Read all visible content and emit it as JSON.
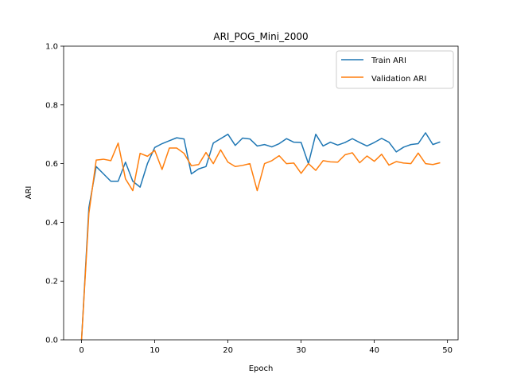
{
  "chart_data": {
    "type": "line",
    "title": "ARI_POG_Mini_2000",
    "xlabel": "Epoch",
    "ylabel": "ARI",
    "xlim": [
      -2.45,
      51.45
    ],
    "ylim": [
      0.0,
      1.0
    ],
    "xticks": [
      0,
      10,
      20,
      30,
      40,
      50
    ],
    "yticks": [
      0.0,
      0.2,
      0.4,
      0.6,
      0.8,
      1.0
    ],
    "xtick_labels": [
      "0",
      "10",
      "20",
      "30",
      "40",
      "50"
    ],
    "ytick_labels": [
      "0.0",
      "0.2",
      "0.4",
      "0.6",
      "0.8",
      "1.0"
    ],
    "grid": false,
    "legend_position": "top-right",
    "x": [
      0,
      1,
      2,
      3,
      4,
      5,
      6,
      7,
      8,
      9,
      10,
      11,
      12,
      13,
      14,
      15,
      16,
      17,
      18,
      19,
      20,
      21,
      22,
      23,
      24,
      25,
      26,
      27,
      28,
      29,
      30,
      31,
      32,
      33,
      34,
      35,
      36,
      37,
      38,
      39,
      40,
      41,
      42,
      43,
      44,
      45,
      46,
      47,
      48,
      49
    ],
    "series": [
      {
        "name": "Train ARI",
        "color": "#1f77b4",
        "values": [
          0.0,
          0.45,
          0.59,
          0.565,
          0.54,
          0.54,
          0.605,
          0.54,
          0.52,
          0.6,
          0.655,
          0.668,
          0.678,
          0.688,
          0.684,
          0.565,
          0.582,
          0.59,
          0.67,
          0.685,
          0.7,
          0.662,
          0.687,
          0.684,
          0.66,
          0.665,
          0.657,
          0.668,
          0.685,
          0.673,
          0.672,
          0.6,
          0.7,
          0.66,
          0.673,
          0.663,
          0.672,
          0.685,
          0.672,
          0.66,
          0.672,
          0.686,
          0.673,
          0.64,
          0.656,
          0.665,
          0.668,
          0.705,
          0.665,
          0.674
        ]
      },
      {
        "name": "Validation ARI",
        "color": "#ff7f0e",
        "values": [
          0.0,
          0.43,
          0.612,
          0.615,
          0.61,
          0.67,
          0.548,
          0.508,
          0.635,
          0.625,
          0.645,
          0.58,
          0.653,
          0.653,
          0.635,
          0.593,
          0.597,
          0.638,
          0.6,
          0.647,
          0.605,
          0.59,
          0.594,
          0.6,
          0.508,
          0.6,
          0.61,
          0.627,
          0.6,
          0.602,
          0.567,
          0.6,
          0.577,
          0.61,
          0.606,
          0.605,
          0.63,
          0.637,
          0.603,
          0.626,
          0.608,
          0.632,
          0.595,
          0.607,
          0.602,
          0.6,
          0.636,
          0.6,
          0.597,
          0.603
        ]
      }
    ]
  }
}
